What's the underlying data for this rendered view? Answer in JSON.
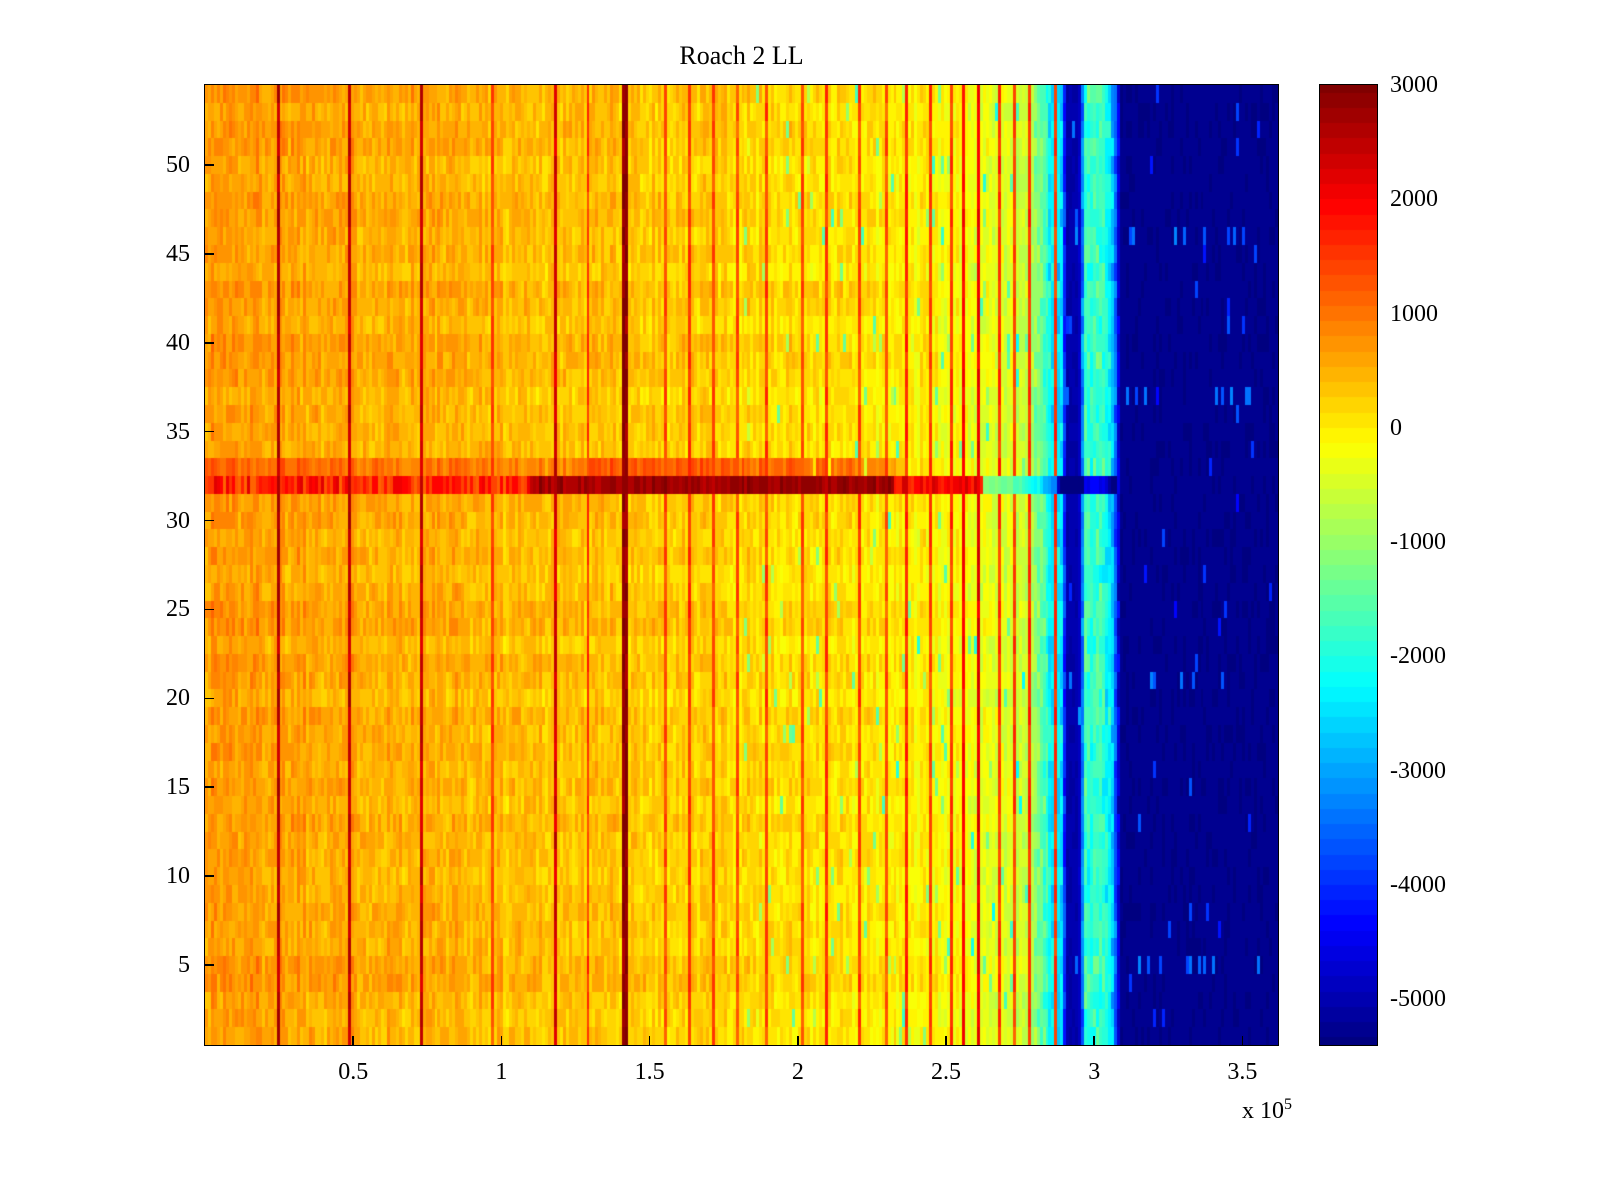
{
  "figure": {
    "title": "Roach 2 LL",
    "background": "#ffffff"
  },
  "axes": {
    "x_tick_labels": [
      "0.5",
      "1",
      "1.5",
      "2",
      "2.5",
      "3",
      "3.5"
    ],
    "x_tick_values": [
      50000,
      100000,
      150000,
      200000,
      250000,
      300000,
      350000
    ],
    "x_scale_base": "x 10",
    "x_scale_exp": "5",
    "y_tick_labels": [
      "5",
      "10",
      "15",
      "20",
      "25",
      "30",
      "35",
      "40",
      "45",
      "50"
    ],
    "y_tick_values": [
      5,
      10,
      15,
      20,
      25,
      30,
      35,
      40,
      45,
      50
    ]
  },
  "colorbar": {
    "tick_labels": [
      "3000",
      "2000",
      "1000",
      "0",
      "-1000",
      "-2000",
      "-3000",
      "-4000",
      "-5000"
    ],
    "tick_values": [
      3000,
      2000,
      1000,
      0,
      -1000,
      -2000,
      -3000,
      -4000,
      -5000
    ],
    "vmin": -5400,
    "vmax": 3000,
    "colormap": "jet"
  },
  "chart_data": {
    "type": "heatmap",
    "title": "Roach 2 LL",
    "x_range": [
      0,
      362000
    ],
    "y_range": [
      0.5,
      54.5
    ],
    "value_range": [
      -5400,
      3000
    ],
    "colormap": "jet",
    "grid": {
      "cols": 360,
      "rows": 54
    },
    "seed": 1337,
    "noise": {
      "cell": 240,
      "column": 150,
      "row": 100,
      "band_extra": 350
    },
    "base_profile": [
      {
        "x": 0.0,
        "v": 700
      },
      {
        "x": 0.4,
        "v": 620
      },
      {
        "x": 1.0,
        "v": 430
      },
      {
        "x": 1.5,
        "v": 320
      },
      {
        "x": 2.0,
        "v": 130
      },
      {
        "x": 2.4,
        "v": -30
      },
      {
        "x": 2.6,
        "v": -250
      },
      {
        "x": 2.75,
        "v": -500
      },
      {
        "x": 2.82,
        "v": -1300
      },
      {
        "x": 2.85,
        "v": -2200
      },
      {
        "x": 2.89,
        "v": -2450
      },
      {
        "x": 2.91,
        "v": -5050
      },
      {
        "x": 2.95,
        "v": -5050
      },
      {
        "x": 2.97,
        "v": -1900
      },
      {
        "x": 3.03,
        "v": -1700
      },
      {
        "x": 3.06,
        "v": -2500
      },
      {
        "x": 3.09,
        "v": -5300
      },
      {
        "x": 3.62,
        "v": -5300
      }
    ],
    "red_stripe": {
      "row": 32,
      "left_value": 1650,
      "hot_start": 1.1,
      "hot_end": 2.32,
      "hot_value": 2720,
      "tail_end": 2.62,
      "tail_value": 2000,
      "cool_segments": [
        {
          "start": 2.62,
          "end": 2.88,
          "delta": -1000
        },
        {
          "start": 2.88,
          "end": 3.08,
          "delta": -2700
        }
      ],
      "row_above": {
        "x_end": 2.35,
        "boost": 400,
        "hot_start": 1.3,
        "hot_end": 2.3,
        "hot_boost": 850
      }
    },
    "vertical_lines": [
      {
        "x": 0.25,
        "v": 2600,
        "w": 1
      },
      {
        "x": 0.49,
        "v": 2450,
        "w": 1
      },
      {
        "x": 0.73,
        "v": 2400,
        "w": 1
      },
      {
        "x": 0.97,
        "v": 1400,
        "w": 1
      },
      {
        "x": 1.18,
        "v": 2300,
        "w": 1
      },
      {
        "x": 1.29,
        "v": 1500,
        "w": 1
      },
      {
        "x": 1.41,
        "v": 2850,
        "w": 2
      },
      {
        "x": 1.55,
        "v": 1300,
        "w": 1
      },
      {
        "x": 1.63,
        "v": 1500,
        "w": 1
      },
      {
        "x": 1.71,
        "v": 1350,
        "w": 1
      },
      {
        "x": 1.79,
        "v": 1300,
        "w": 1
      },
      {
        "x": 1.9,
        "v": 1400,
        "w": 1
      },
      {
        "x": 2.02,
        "v": 1300,
        "w": 1
      },
      {
        "x": 2.1,
        "v": 1500,
        "w": 1
      },
      {
        "x": 2.21,
        "v": 1400,
        "w": 1
      },
      {
        "x": 2.3,
        "v": 1300,
        "w": 1
      },
      {
        "x": 2.37,
        "v": 1600,
        "w": 1
      },
      {
        "x": 2.45,
        "v": 1400,
        "w": 1
      },
      {
        "x": 2.52,
        "v": 1500,
        "w": 1
      },
      {
        "x": 2.56,
        "v": 1900,
        "w": 1
      },
      {
        "x": 2.61,
        "v": 2100,
        "w": 1
      },
      {
        "x": 2.68,
        "v": 1500,
        "w": 1
      },
      {
        "x": 2.73,
        "v": 1400,
        "w": 1
      },
      {
        "x": 2.78,
        "v": 1600,
        "w": 1
      },
      {
        "x": 2.87,
        "v": 1500,
        "w": 1
      }
    ],
    "green_speckles": {
      "base_min": -800,
      "base_max": 200,
      "chance": 0.035,
      "min_drop": 700,
      "max_drop": 1600
    },
    "deep_blue": {
      "threshold": -4800,
      "jitter": 60,
      "speckle_chance": 0.012,
      "speckle_min": 900,
      "speckle_max": 1700,
      "speckle_rows": [
        5,
        21,
        37,
        46
      ],
      "row_speckle_chance": 0.15,
      "row_speckle_value": -3500
    }
  }
}
